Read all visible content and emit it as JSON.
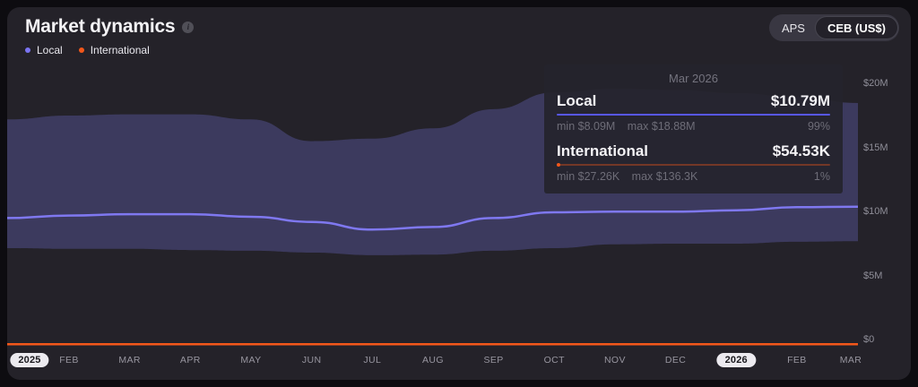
{
  "header": {
    "title": "Market dynamics",
    "info_icon": "i"
  },
  "legend": {
    "items": [
      {
        "label": "Local",
        "color": "#7b74f2"
      },
      {
        "label": "International",
        "color": "#f2571a"
      }
    ]
  },
  "toggle": {
    "options": [
      {
        "label": "APS"
      },
      {
        "label": "CEB (US$)"
      }
    ],
    "selected": "CEB (US$)"
  },
  "tooltip": {
    "date": "Mar 2026",
    "rows": [
      {
        "name": "Local",
        "value": "$10.79M",
        "min": "min $8.09M",
        "max": "max $18.88M",
        "pct": "99%"
      },
      {
        "name": "International",
        "value": "$54.53K",
        "min": "min $27.26K",
        "max": "max $136.3K",
        "pct": "1%"
      }
    ]
  },
  "colors": {
    "card_bg": "#242229",
    "outer_bg": "#0d0c10",
    "band_fill": "#3c3a5e",
    "local_line": "#7f78f0",
    "international_line": "#f2571a",
    "axis_text": "#8f8e98",
    "title_text": "#f4f3f6"
  },
  "chart_data": {
    "type": "area",
    "x": [
      "Jan 2025",
      "Feb 2025",
      "Mar 2025",
      "Apr 2025",
      "May 2025",
      "Jun 2025",
      "Jul 2025",
      "Aug 2025",
      "Sep 2025",
      "Oct 2025",
      "Nov 2025",
      "Dec 2025",
      "Jan 2026",
      "Feb 2026",
      "Mar 2026"
    ],
    "x_tick_labels": [
      {
        "label": "2025",
        "pill": true
      },
      {
        "label": "FEB",
        "pill": false
      },
      {
        "label": "MAR",
        "pill": false
      },
      {
        "label": "APR",
        "pill": false
      },
      {
        "label": "MAY",
        "pill": false
      },
      {
        "label": "JUN",
        "pill": false
      },
      {
        "label": "JUL",
        "pill": false
      },
      {
        "label": "AUG",
        "pill": false
      },
      {
        "label": "SEP",
        "pill": false
      },
      {
        "label": "OCT",
        "pill": false
      },
      {
        "label": "NOV",
        "pill": false
      },
      {
        "label": "DEC",
        "pill": false
      },
      {
        "label": "2026",
        "pill": true
      },
      {
        "label": "FEB",
        "pill": false
      },
      {
        "label": "MAR",
        "pill": false
      }
    ],
    "y_ticks": [
      {
        "label": "$20M",
        "value": 20
      },
      {
        "label": "$15M",
        "value": 15
      },
      {
        "label": "$10M",
        "value": 10
      },
      {
        "label": "$5M",
        "value": 5
      },
      {
        "label": "$0",
        "value": 0
      }
    ],
    "ylim": [
      0,
      20
    ],
    "grid": false,
    "legend_position": "top-left",
    "series": [
      {
        "name": "Local",
        "unit": "M US$",
        "values": [
          9.9,
          10.1,
          10.2,
          10.2,
          10.0,
          9.6,
          9.0,
          9.2,
          9.9,
          10.35,
          10.4,
          10.4,
          10.5,
          10.75,
          10.79
        ]
      },
      {
        "name": "Local max",
        "unit": "M US$",
        "values": [
          17.6,
          17.9,
          18.0,
          18.0,
          17.6,
          15.9,
          16.1,
          16.9,
          18.4,
          19.7,
          20.0,
          19.9,
          19.65,
          19.35,
          18.88
        ]
      },
      {
        "name": "Local min",
        "unit": "M US$",
        "values": [
          7.55,
          7.5,
          7.5,
          7.4,
          7.35,
          7.2,
          7.0,
          7.05,
          7.35,
          7.55,
          7.85,
          7.9,
          7.9,
          8.05,
          8.09
        ]
      },
      {
        "name": "International",
        "unit": "M US$",
        "values": [
          0.05,
          0.05,
          0.05,
          0.05,
          0.05,
          0.05,
          0.05,
          0.05,
          0.05,
          0.05,
          0.05,
          0.05,
          0.05,
          0.05,
          0.0545
        ]
      }
    ],
    "hover_point": {
      "x": "Mar 2026",
      "local": "$10.79M",
      "local_pct": "99%",
      "international": "$54.53K",
      "international_pct": "1%"
    }
  }
}
